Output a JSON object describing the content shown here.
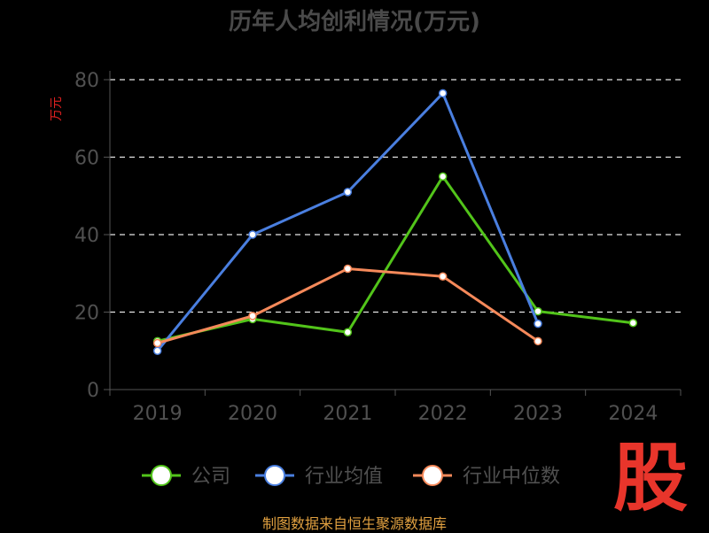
{
  "chart_data": {
    "type": "line",
    "title": "历年人均创利情况(万元)",
    "ylabel": "万元",
    "categories": [
      "2019",
      "2020",
      "2021",
      "2022",
      "2023",
      "2024"
    ],
    "ylim": [
      0,
      80
    ],
    "yticks": [
      0,
      20,
      40,
      60,
      80
    ],
    "grid": true,
    "legend_position": "bottom",
    "series": [
      {
        "name": "公司",
        "color": "#52c41a",
        "values": [
          12.5,
          18.2,
          14.8,
          55.0,
          20.2,
          17.2
        ]
      },
      {
        "name": "行业均值",
        "color": "#4a7fe0",
        "values": [
          10.0,
          40.0,
          51.0,
          76.5,
          17.0,
          null
        ]
      },
      {
        "name": "行业中位数",
        "color": "#f5895a",
        "values": [
          12.0,
          19.0,
          31.2,
          29.2,
          12.5,
          null
        ]
      }
    ]
  },
  "source_text": "制图数据来自恒生聚源数据库",
  "logo_text": "股"
}
